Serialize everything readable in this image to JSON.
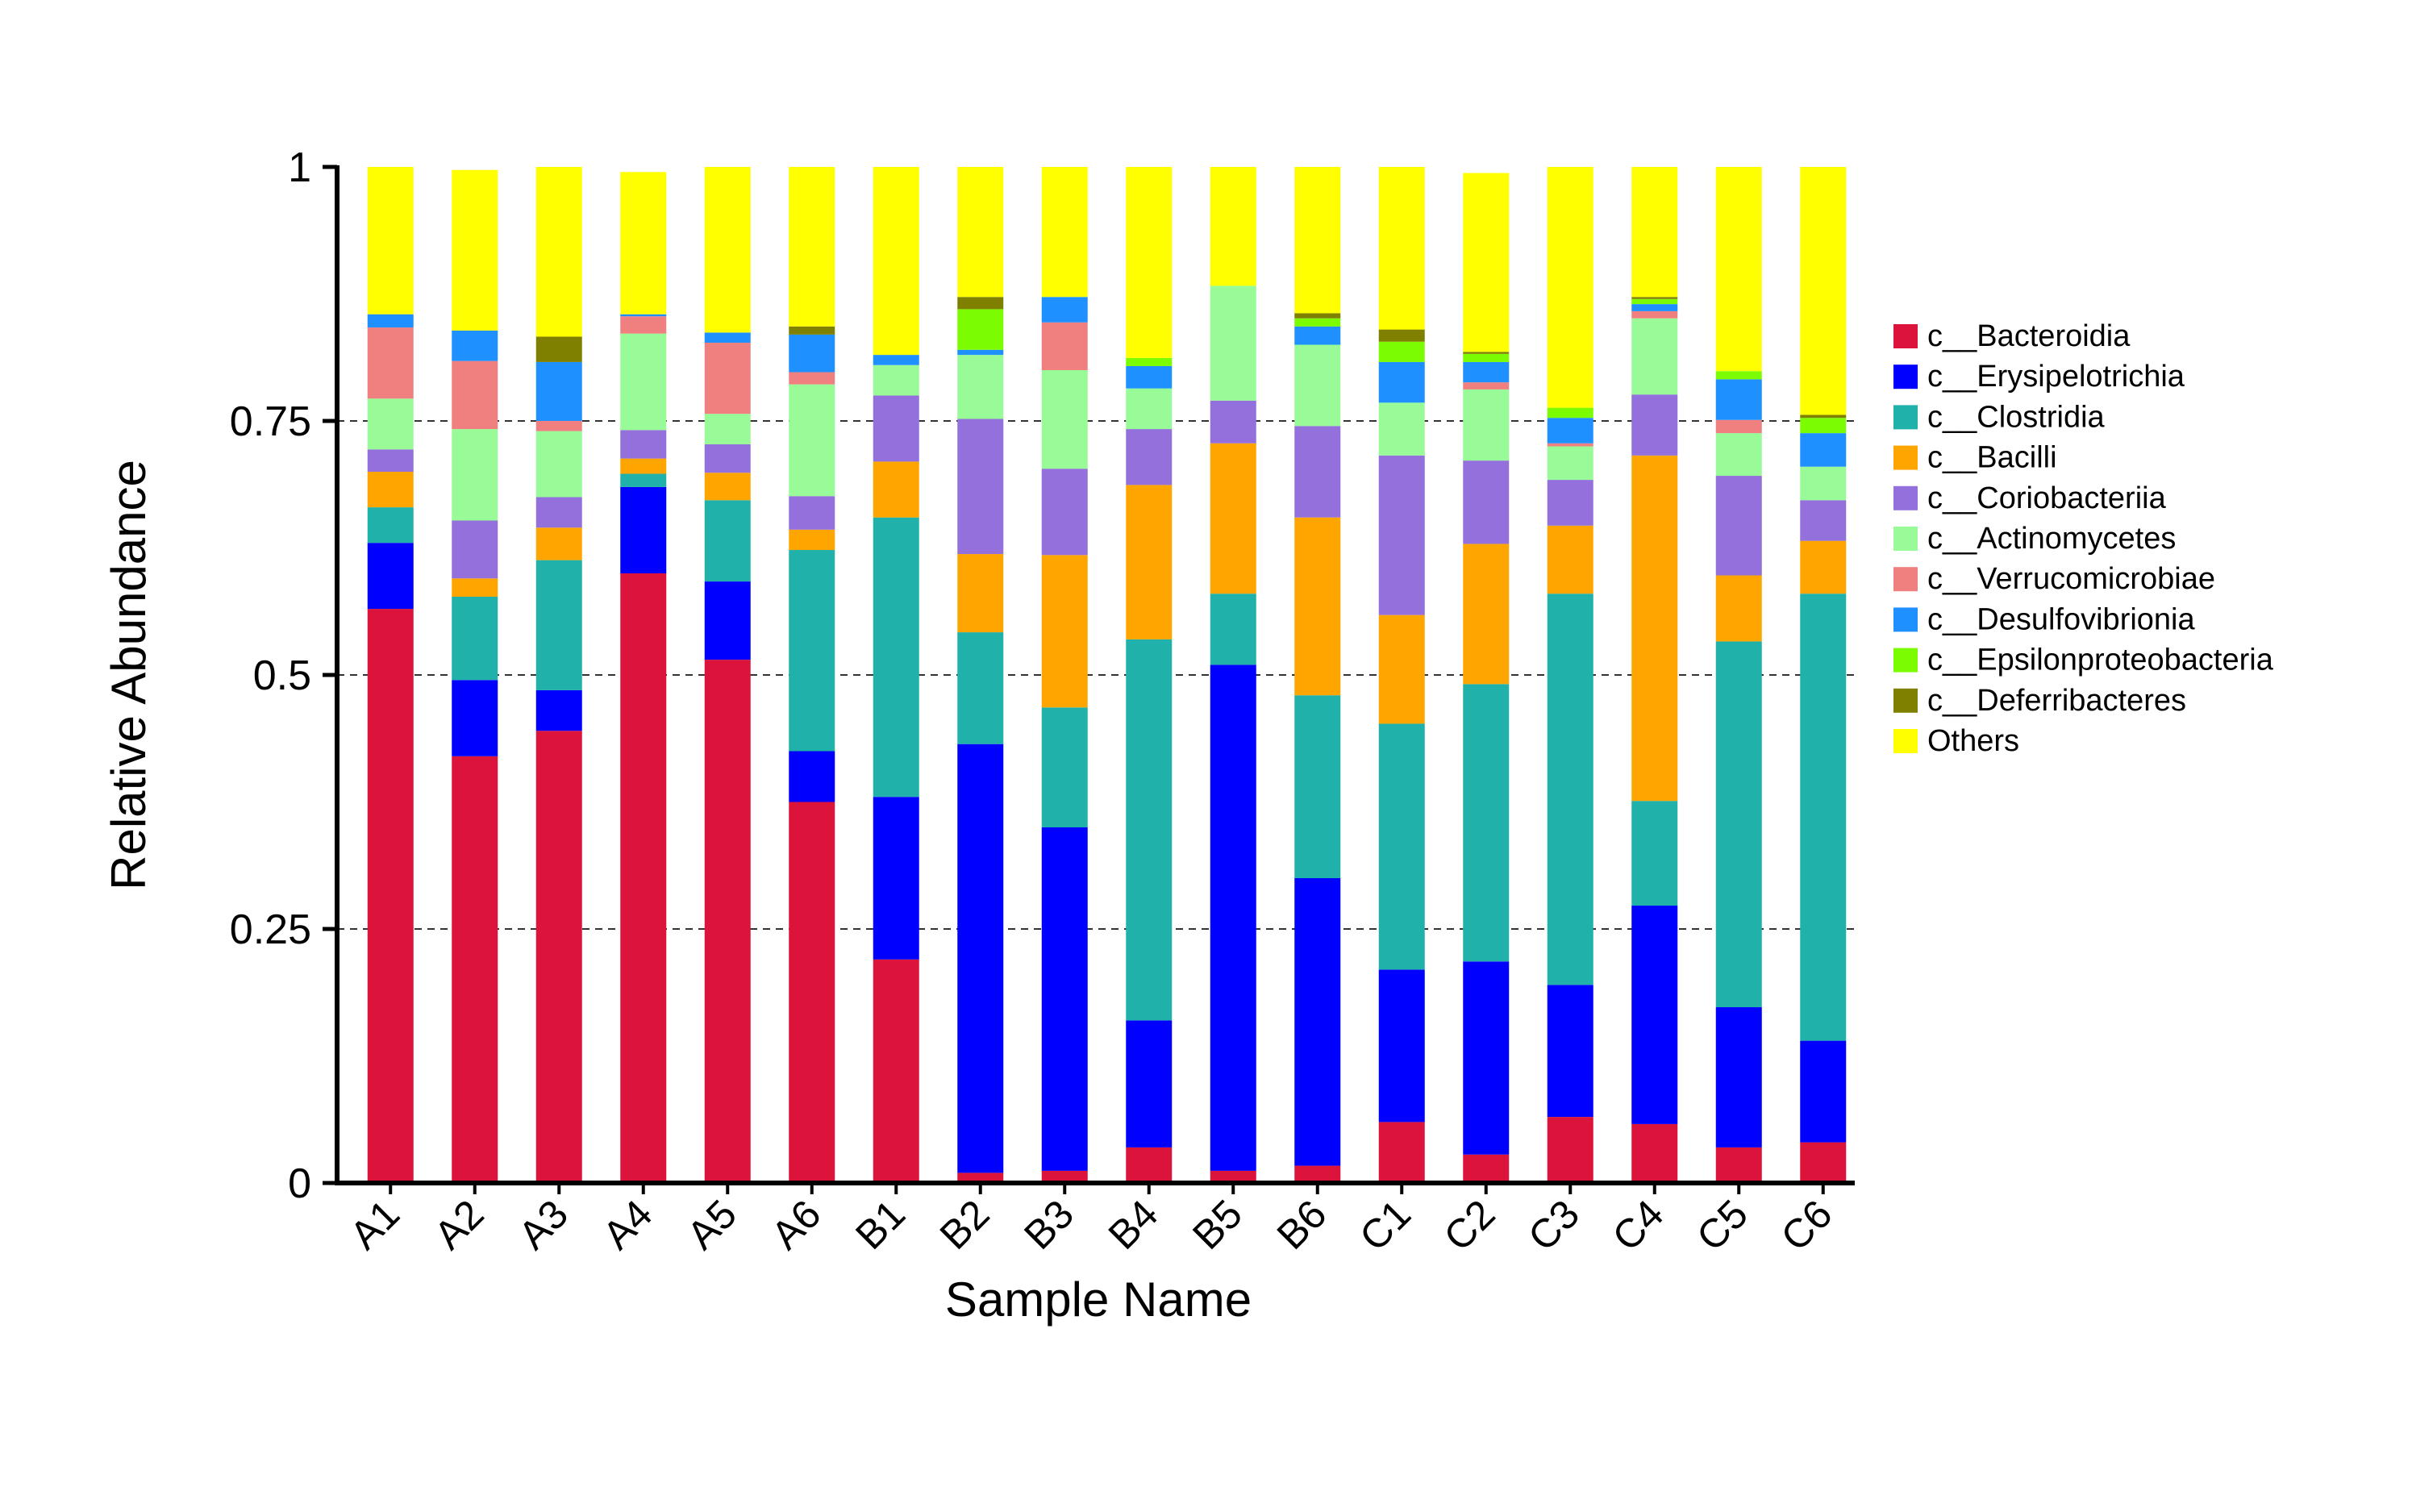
{
  "chart_data": {
    "type": "bar",
    "stacked": true,
    "title": "",
    "xlabel": "Sample Name",
    "ylabel": "Relative Abundance",
    "ylim": [
      0,
      1
    ],
    "yticks": [
      "0",
      "0.25",
      "0.5",
      "0.75",
      "1"
    ],
    "ytick_values": [
      0,
      0.25,
      0.5,
      0.75,
      1
    ],
    "grid": "dashed horizontal at 0.25, 0.5, 0.75",
    "legend_position": "right",
    "categories": [
      "A1",
      "A2",
      "A3",
      "A4",
      "A5",
      "A6",
      "B1",
      "B2",
      "B3",
      "B4",
      "B5",
      "B6",
      "C1",
      "C2",
      "C3",
      "C4",
      "C5",
      "C6"
    ],
    "series": [
      {
        "name": "c__Bacteroidia",
        "color": "#DC143C",
        "values": [
          0.565,
          0.42,
          0.445,
          0.6,
          0.515,
          0.375,
          0.22,
          0.01,
          0.012,
          0.035,
          0.012,
          0.017,
          0.06,
          0.028,
          0.065,
          0.058,
          0.035,
          0.04
        ]
      },
      {
        "name": "c__Erysipelotrichia",
        "color": "#0000FF",
        "values": [
          0.065,
          0.075,
          0.04,
          0.085,
          0.077,
          0.05,
          0.16,
          0.422,
          0.338,
          0.125,
          0.498,
          0.283,
          0.15,
          0.19,
          0.13,
          0.215,
          0.138,
          0.1
        ]
      },
      {
        "name": "c__Clostridia",
        "color": "#20B2AA",
        "values": [
          0.035,
          0.082,
          0.128,
          0.013,
          0.08,
          0.198,
          0.275,
          0.11,
          0.118,
          0.375,
          0.07,
          0.18,
          0.242,
          0.273,
          0.385,
          0.103,
          0.36,
          0.44
        ]
      },
      {
        "name": "c__Bacilli",
        "color": "#FFA500",
        "values": [
          0.035,
          0.018,
          0.032,
          0.015,
          0.027,
          0.02,
          0.055,
          0.077,
          0.15,
          0.152,
          0.148,
          0.175,
          0.107,
          0.138,
          0.067,
          0.34,
          0.065,
          0.052
        ]
      },
      {
        "name": "c__Coriobacteriia",
        "color": "#9370DB",
        "values": [
          0.022,
          0.057,
          0.03,
          0.028,
          0.028,
          0.033,
          0.065,
          0.133,
          0.085,
          0.055,
          0.042,
          0.09,
          0.157,
          0.082,
          0.045,
          0.06,
          0.098,
          0.04
        ]
      },
      {
        "name": "c__Actinomycetes",
        "color": "#98FB98",
        "values": [
          0.05,
          0.09,
          0.065,
          0.095,
          0.03,
          0.11,
          0.03,
          0.063,
          0.097,
          0.04,
          0.113,
          0.08,
          0.052,
          0.07,
          0.033,
          0.075,
          0.042,
          0.033
        ]
      },
      {
        "name": "c__Verrucomicrobiae",
        "color": "#F08080",
        "values": [
          0.07,
          0.067,
          0.01,
          0.017,
          0.07,
          0.012,
          0.0,
          0.0,
          0.047,
          0.0,
          0.0,
          0.0,
          0.0,
          0.007,
          0.003,
          0.007,
          0.013,
          0.0
        ]
      },
      {
        "name": "c__Desulfovibrionia",
        "color": "#1E90FF",
        "values": [
          0.013,
          0.03,
          0.058,
          0.002,
          0.01,
          0.037,
          0.01,
          0.005,
          0.025,
          0.022,
          0.0,
          0.018,
          0.04,
          0.02,
          0.025,
          0.007,
          0.04,
          0.033
        ]
      },
      {
        "name": "c__Epsilonproteobacteria",
        "color": "#7CFC00",
        "values": [
          0.0,
          0.0,
          0.0,
          0.0,
          0.0,
          0.0,
          0.0,
          0.04,
          0.0,
          0.008,
          0.0,
          0.008,
          0.02,
          0.008,
          0.01,
          0.005,
          0.008,
          0.015
        ]
      },
      {
        "name": "c__Deferribacteres",
        "color": "#808000",
        "values": [
          0.0,
          0.0,
          0.025,
          0.0,
          0.0,
          0.008,
          0.0,
          0.012,
          0.0,
          0.0,
          0.0,
          0.005,
          0.012,
          0.002,
          0.0,
          0.002,
          0.0,
          0.003
        ]
      },
      {
        "name": "Others",
        "color": "#FFFF00",
        "values": [
          0.145,
          0.158,
          0.167,
          0.14,
          0.163,
          0.157,
          0.185,
          0.128,
          0.128,
          0.188,
          0.117,
          0.144,
          0.16,
          0.176,
          0.237,
          0.128,
          0.201,
          0.244
        ]
      }
    ]
  }
}
